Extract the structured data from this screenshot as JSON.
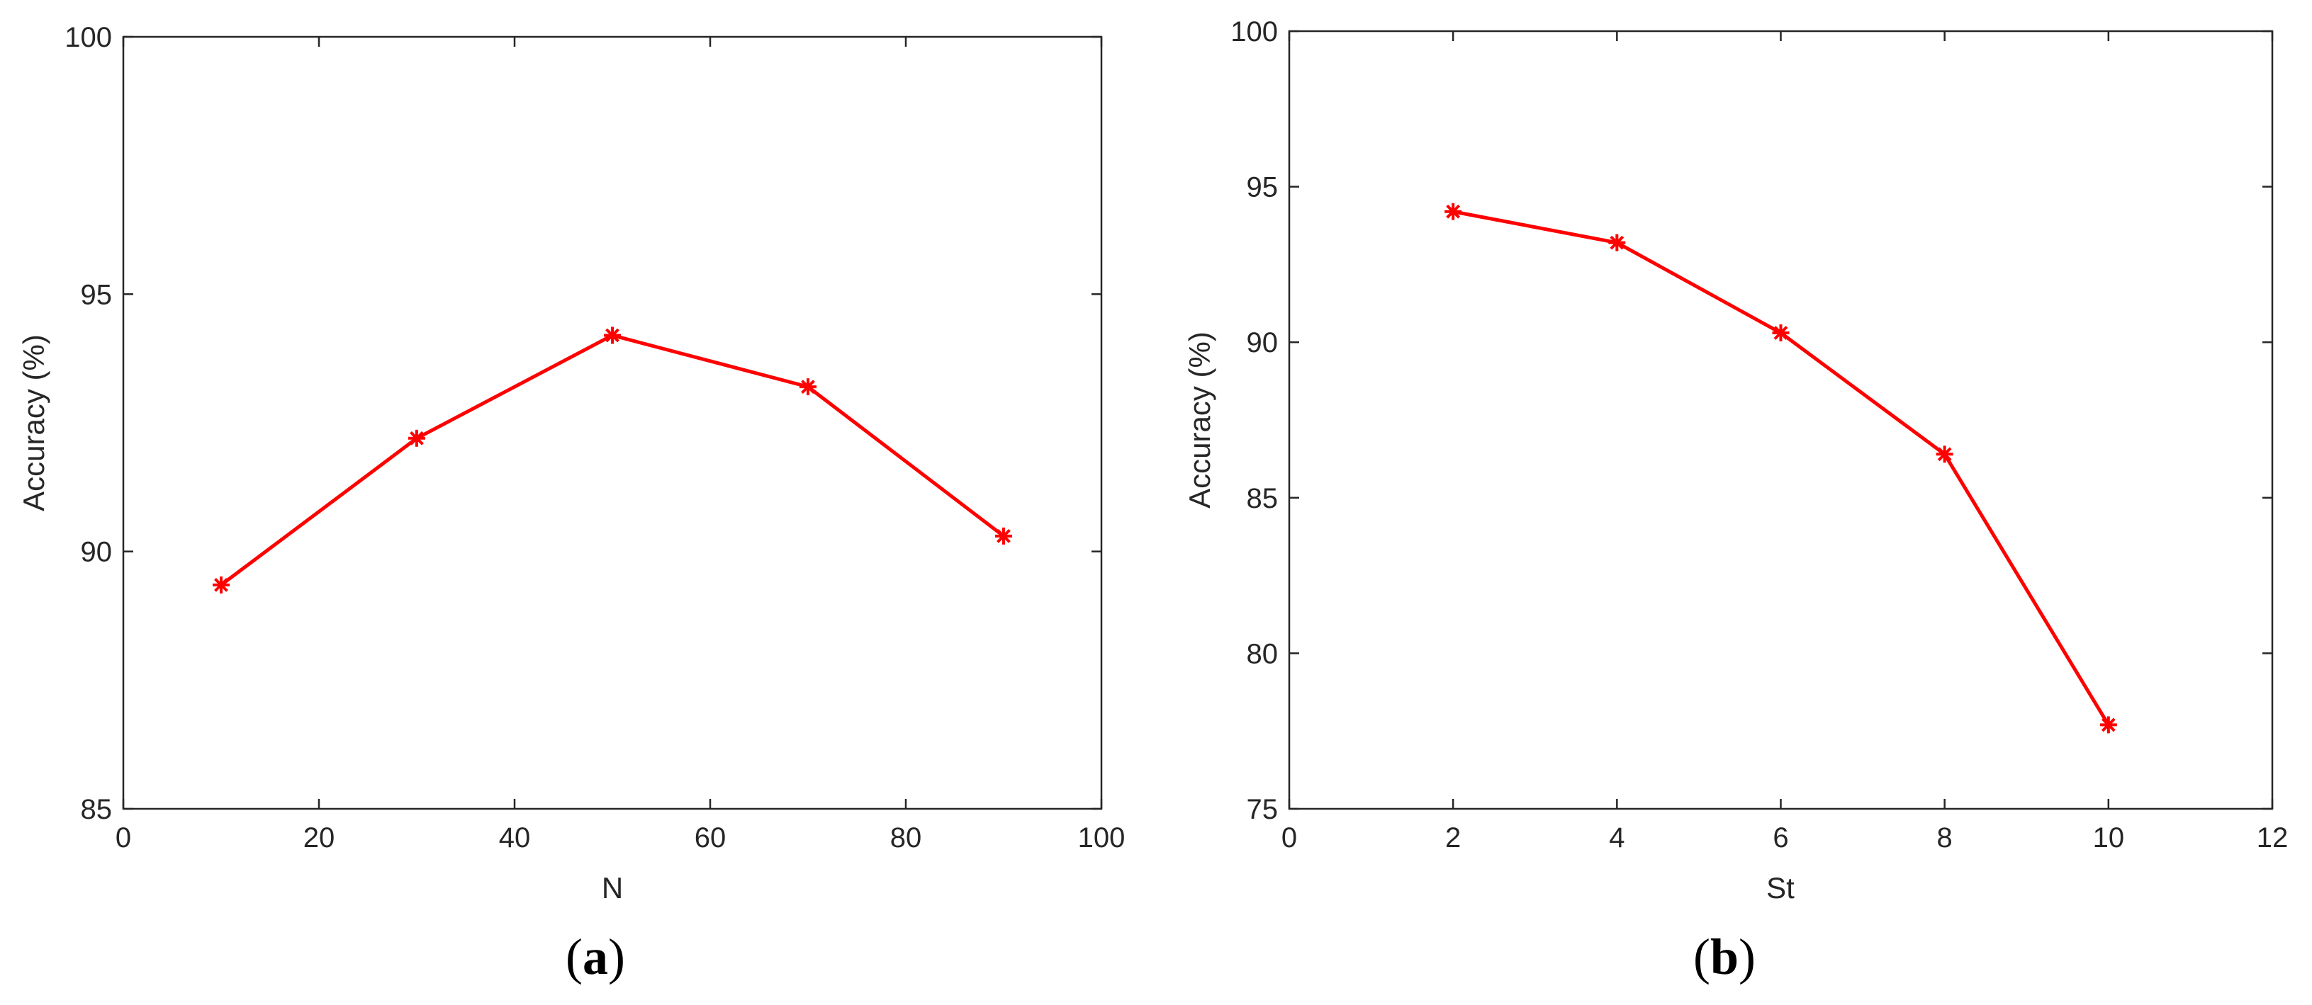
{
  "colors": {
    "series": "#ff0000",
    "axis": "#262626",
    "background": "#ffffff"
  },
  "chart_data": [
    {
      "type": "line",
      "caption_letter": "a",
      "xlabel": "N",
      "ylabel": "Accuracy (%)",
      "xlim": [
        0,
        100
      ],
      "ylim": [
        85,
        100
      ],
      "xticks": [
        0,
        20,
        40,
        60,
        80,
        100
      ],
      "yticks": [
        85,
        90,
        95,
        100
      ],
      "xtick_labels": [
        "0",
        "20",
        "40",
        "60",
        "80",
        "100"
      ],
      "ytick_labels": [
        "85",
        "90",
        "95",
        "100"
      ],
      "grid": false,
      "legend": "none",
      "marker": "asterisk",
      "x": [
        10,
        30,
        50,
        70,
        90
      ],
      "y": [
        89.35,
        92.2,
        94.2,
        93.2,
        90.3
      ]
    },
    {
      "type": "line",
      "caption_letter": "b",
      "xlabel": "St",
      "ylabel": "Accuracy (%)",
      "xlim": [
        0,
        12
      ],
      "ylim": [
        75,
        100
      ],
      "xticks": [
        0,
        2,
        4,
        6,
        8,
        10,
        12
      ],
      "yticks": [
        75,
        80,
        85,
        90,
        95,
        100
      ],
      "xtick_labels": [
        "0",
        "2",
        "4",
        "6",
        "8",
        "10",
        "12"
      ],
      "ytick_labels": [
        "75",
        "80",
        "85",
        "90",
        "95",
        "100"
      ],
      "grid": false,
      "legend": "none",
      "marker": "asterisk",
      "x": [
        2,
        4,
        6,
        8,
        10
      ],
      "y": [
        94.2,
        93.2,
        90.3,
        86.4,
        77.7
      ]
    }
  ]
}
